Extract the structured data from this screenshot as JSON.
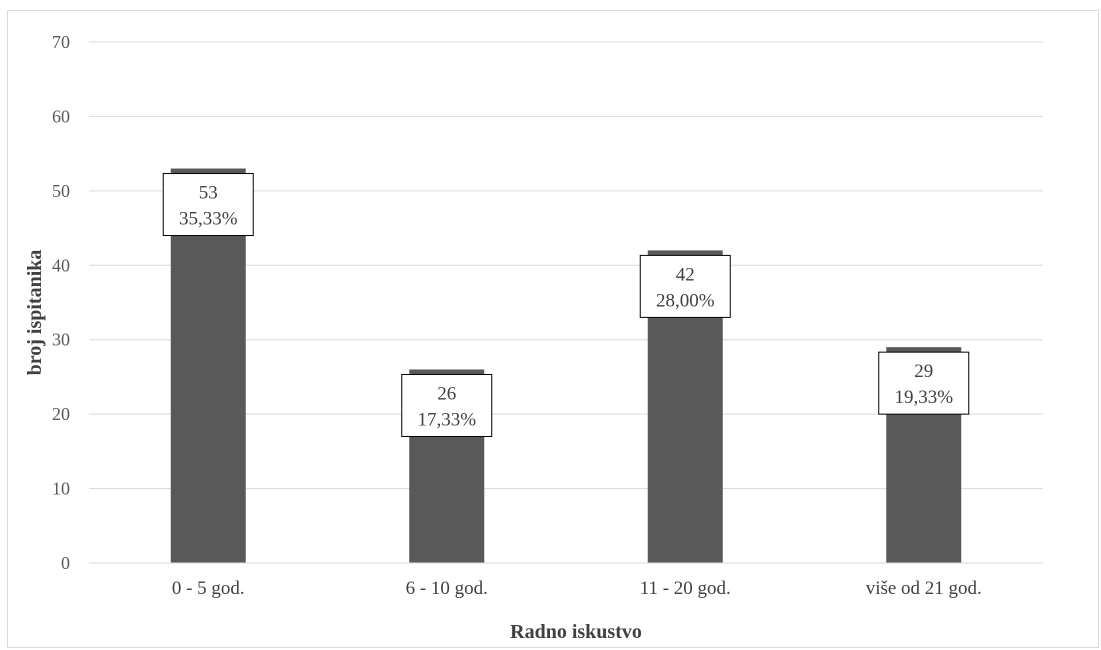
{
  "chart_data": {
    "type": "bar",
    "categories": [
      "0 - 5 god.",
      "6 - 10 god.",
      "11 - 20 god.",
      "više od 21 god."
    ],
    "values": [
      53,
      26,
      42,
      29
    ],
    "percentages": [
      "35,33%",
      "17,33%",
      "28,00%",
      "19,33%"
    ],
    "title": "",
    "xlabel": "Radno iskustvo",
    "ylabel": "broj ispitanika",
    "ylim": [
      0,
      70
    ],
    "yticks": [
      0,
      10,
      20,
      30,
      40,
      50,
      60,
      70
    ],
    "grid": true,
    "legend": "none",
    "colors": {
      "bar": "#595959",
      "grid": "#d9d9d9",
      "label_border": "#000000"
    }
  }
}
